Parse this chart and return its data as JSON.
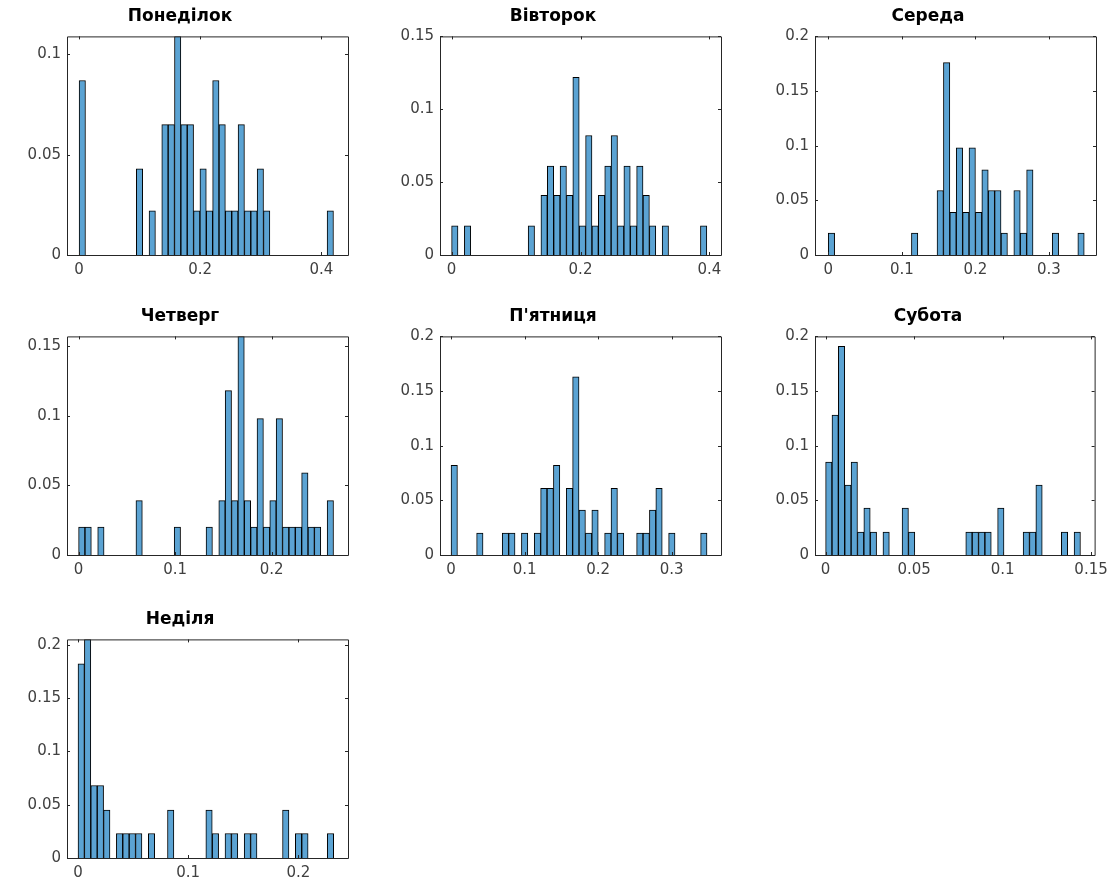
{
  "chart_data": [
    {
      "type": "histogram",
      "title": "Понеділок",
      "color": "#5ba3d3",
      "xlim": [
        -0.02,
        0.444
      ],
      "ylim": [
        0,
        0.109
      ],
      "xticks": [
        0,
        0.2,
        0.4
      ],
      "yticks": [
        0,
        0.05,
        0.1
      ],
      "bins": [
        0,
        0.0105,
        0.021,
        0.0315,
        0.042,
        0.0525,
        0.063,
        0.0735,
        0.084,
        0.0945,
        0.105,
        0.1155,
        0.126,
        0.1365,
        0.147,
        0.1575,
        0.168,
        0.1785,
        0.189,
        0.1995,
        0.21,
        0.2205,
        0.231,
        0.2415,
        0.252,
        0.2625,
        0.273,
        0.2835,
        0.294,
        0.3045,
        0.315,
        0.3255,
        0.336,
        0.3465,
        0.357,
        0.3675,
        0.378,
        0.3885,
        0.399,
        0.4095,
        0.42
      ],
      "values": [
        0.087,
        0,
        0,
        0,
        0,
        0,
        0,
        0,
        0,
        0.043,
        0,
        0.022,
        0,
        0.065,
        0.065,
        0.109,
        0.065,
        0.065,
        0.022,
        0.043,
        0.022,
        0.087,
        0.065,
        0.022,
        0.022,
        0.065,
        0.022,
        0.022,
        0.043,
        0.022,
        0,
        0,
        0,
        0,
        0,
        0,
        0,
        0,
        0,
        0.022
      ]
    },
    {
      "type": "histogram",
      "title": "Вівторок",
      "color": "#5ba3d3",
      "xlim": [
        -0.018,
        0.418
      ],
      "ylim": [
        0,
        0.15
      ],
      "xticks": [
        0,
        0.2,
        0.4
      ],
      "yticks": [
        0,
        0.05,
        0.1,
        0.15
      ],
      "bins": [
        0,
        0.0099,
        0.0198,
        0.0297,
        0.0396,
        0.0495,
        0.0594,
        0.0693,
        0.0792,
        0.0891,
        0.099,
        0.1089,
        0.1188,
        0.1287,
        0.1386,
        0.1485,
        0.1584,
        0.1683,
        0.1782,
        0.1881,
        0.198,
        0.2079,
        0.2178,
        0.2277,
        0.2376,
        0.2475,
        0.2574,
        0.2673,
        0.2772,
        0.2871,
        0.297,
        0.3069,
        0.3168,
        0.3267,
        0.3366,
        0.3465,
        0.3564,
        0.3663,
        0.3762,
        0.3861,
        0.396
      ],
      "values": [
        0.02,
        0,
        0.02,
        0,
        0,
        0,
        0,
        0,
        0,
        0,
        0,
        0,
        0.02,
        0,
        0.041,
        0.061,
        0.041,
        0.061,
        0.041,
        0.122,
        0.02,
        0.082,
        0.02,
        0.041,
        0.061,
        0.082,
        0.02,
        0.061,
        0.02,
        0.061,
        0.041,
        0.02,
        0,
        0.02,
        0,
        0,
        0,
        0,
        0,
        0.02
      ]
    },
    {
      "type": "histogram",
      "title": "Середа",
      "color": "#5ba3d3",
      "xlim": [
        -0.018,
        0.364
      ],
      "ylim": [
        0,
        0.2
      ],
      "xticks": [
        0,
        0.1,
        0.2,
        0.3
      ],
      "yticks": [
        0,
        0.05,
        0.1,
        0.15,
        0.2
      ],
      "bins": [
        0,
        0.0087,
        0.0174,
        0.0261,
        0.0348,
        0.0435,
        0.0522,
        0.0609,
        0.0696,
        0.0783,
        0.087,
        0.0957,
        0.1044,
        0.1131,
        0.1218,
        0.1305,
        0.1392,
        0.1479,
        0.1566,
        0.1653,
        0.174,
        0.1827,
        0.1914,
        0.2001,
        0.2088,
        0.2175,
        0.2262,
        0.2349,
        0.2436,
        0.2523,
        0.261,
        0.2697,
        0.2784,
        0.2871,
        0.2958,
        0.3045,
        0.3132,
        0.3219,
        0.3306,
        0.3393,
        0.348
      ],
      "values": [
        0.02,
        0,
        0,
        0,
        0,
        0,
        0,
        0,
        0,
        0,
        0,
        0,
        0,
        0.02,
        0,
        0,
        0,
        0.059,
        0.176,
        0.039,
        0.098,
        0.039,
        0.098,
        0.039,
        0.078,
        0.059,
        0.059,
        0.02,
        0,
        0.059,
        0.02,
        0.078,
        0,
        0,
        0,
        0.02,
        0,
        0,
        0,
        0.02
      ]
    },
    {
      "type": "histogram",
      "title": "Четверг",
      "color": "#5ba3d3",
      "xlim": [
        -0.012,
        0.279
      ],
      "ylim": [
        0,
        0.157
      ],
      "xticks": [
        0,
        0.1,
        0.2
      ],
      "yticks": [
        0,
        0.05,
        0.1,
        0.15
      ],
      "bins": [
        0,
        0.0066,
        0.0132,
        0.0198,
        0.0264,
        0.033,
        0.0396,
        0.0462,
        0.0528,
        0.0594,
        0.066,
        0.0726,
        0.0792,
        0.0858,
        0.0924,
        0.099,
        0.1056,
        0.1122,
        0.1188,
        0.1254,
        0.132,
        0.1386,
        0.1452,
        0.1518,
        0.1584,
        0.165,
        0.1716,
        0.1782,
        0.1848,
        0.1914,
        0.198,
        0.2046,
        0.2112,
        0.2178,
        0.2244,
        0.231,
        0.2376,
        0.2442,
        0.2508,
        0.2574,
        0.264
      ],
      "values": [
        0.02,
        0.02,
        0,
        0.02,
        0,
        0,
        0,
        0,
        0,
        0.039,
        0,
        0,
        0,
        0,
        0,
        0.02,
        0,
        0,
        0,
        0,
        0.02,
        0,
        0.039,
        0.118,
        0.039,
        0.157,
        0.039,
        0.02,
        0.098,
        0.02,
        0.039,
        0.098,
        0.02,
        0.02,
        0.02,
        0.059,
        0.02,
        0.02,
        0,
        0.039
      ]
    },
    {
      "type": "histogram",
      "title": "П'ятниця",
      "color": "#5ba3d3",
      "xlim": [
        -0.015,
        0.367
      ],
      "ylim": [
        0,
        0.2
      ],
      "xticks": [
        0,
        0.1,
        0.2,
        0.3
      ],
      "yticks": [
        0,
        0.05,
        0.1,
        0.15,
        0.2
      ],
      "bins": [
        0,
        0.0087,
        0.0174,
        0.0261,
        0.0348,
        0.0435,
        0.0522,
        0.0609,
        0.0696,
        0.0783,
        0.087,
        0.0957,
        0.1044,
        0.1131,
        0.1218,
        0.1305,
        0.1392,
        0.1479,
        0.1566,
        0.1653,
        0.174,
        0.1827,
        0.1914,
        0.2001,
        0.2088,
        0.2175,
        0.2262,
        0.2349,
        0.2436,
        0.2523,
        0.261,
        0.2697,
        0.2784,
        0.2871,
        0.2958,
        0.3045,
        0.3132,
        0.3219,
        0.3306,
        0.3393,
        0.348
      ],
      "values": [
        0.082,
        0,
        0,
        0,
        0.02,
        0,
        0,
        0,
        0.02,
        0.02,
        0,
        0.02,
        0,
        0.02,
        0.061,
        0.061,
        0.082,
        0,
        0.061,
        0.163,
        0.041,
        0.02,
        0.041,
        0,
        0.02,
        0.061,
        0.02,
        0,
        0,
        0.02,
        0.02,
        0.041,
        0.061,
        0,
        0.02,
        0,
        0,
        0,
        0,
        0.02
      ]
    },
    {
      "type": "histogram",
      "title": "Субота",
      "color": "#5ba3d3",
      "xlim": [
        -0.006,
        0.152
      ],
      "ylim": [
        0,
        0.2
      ],
      "xticks": [
        0,
        0.05,
        0.1,
        0.15
      ],
      "yticks": [
        0,
        0.05,
        0.1,
        0.15,
        0.2
      ],
      "bins": [
        0,
        0.0036,
        0.0072,
        0.0108,
        0.0144,
        0.018,
        0.0216,
        0.0252,
        0.0288,
        0.0324,
        0.036,
        0.0396,
        0.0432,
        0.0468,
        0.0504,
        0.054,
        0.0576,
        0.0612,
        0.0648,
        0.0684,
        0.072,
        0.0756,
        0.0792,
        0.0828,
        0.0864,
        0.09,
        0.0936,
        0.0972,
        0.1008,
        0.1044,
        0.108,
        0.1116,
        0.1152,
        0.1188,
        0.1224,
        0.126,
        0.1296,
        0.1332,
        0.1368,
        0.1404,
        0.144
      ],
      "values": [
        0.085,
        0.128,
        0.191,
        0.064,
        0.085,
        0.021,
        0.043,
        0.021,
        0,
        0.021,
        0,
        0,
        0.043,
        0.021,
        0,
        0,
        0,
        0,
        0,
        0,
        0,
        0,
        0.021,
        0.021,
        0.021,
        0.021,
        0,
        0.043,
        0,
        0,
        0,
        0.021,
        0.021,
        0.064,
        0,
        0,
        0,
        0.021,
        0,
        0.021
      ]
    },
    {
      "type": "histogram",
      "title": "Неділя",
      "color": "#5ba3d3",
      "xlim": [
        -0.01,
        0.245
      ],
      "ylim": [
        0,
        0.205
      ],
      "xticks": [
        0,
        0.1,
        0.2
      ],
      "yticks": [
        0,
        0.05,
        0.1,
        0.15,
        0.2
      ],
      "bins": [
        0,
        0.0058,
        0.0116,
        0.0174,
        0.0232,
        0.029,
        0.0348,
        0.0406,
        0.0464,
        0.0522,
        0.058,
        0.0638,
        0.0696,
        0.0754,
        0.0812,
        0.087,
        0.0928,
        0.0986,
        0.1044,
        0.1102,
        0.116,
        0.1218,
        0.1276,
        0.1334,
        0.1392,
        0.145,
        0.1508,
        0.1566,
        0.1624,
        0.1682,
        0.174,
        0.1798,
        0.1856,
        0.1914,
        0.1972,
        0.203,
        0.2088,
        0.2146,
        0.2204,
        0.2262,
        0.232
      ],
      "values": [
        0.182,
        0.205,
        0.068,
        0.068,
        0.045,
        0,
        0.023,
        0.023,
        0.023,
        0.023,
        0,
        0.023,
        0,
        0,
        0.045,
        0,
        0,
        0,
        0,
        0,
        0.045,
        0.023,
        0,
        0.023,
        0.023,
        0,
        0.023,
        0.023,
        0,
        0,
        0,
        0,
        0.045,
        0,
        0.023,
        0.023,
        0,
        0,
        0,
        0.023
      ]
    }
  ]
}
